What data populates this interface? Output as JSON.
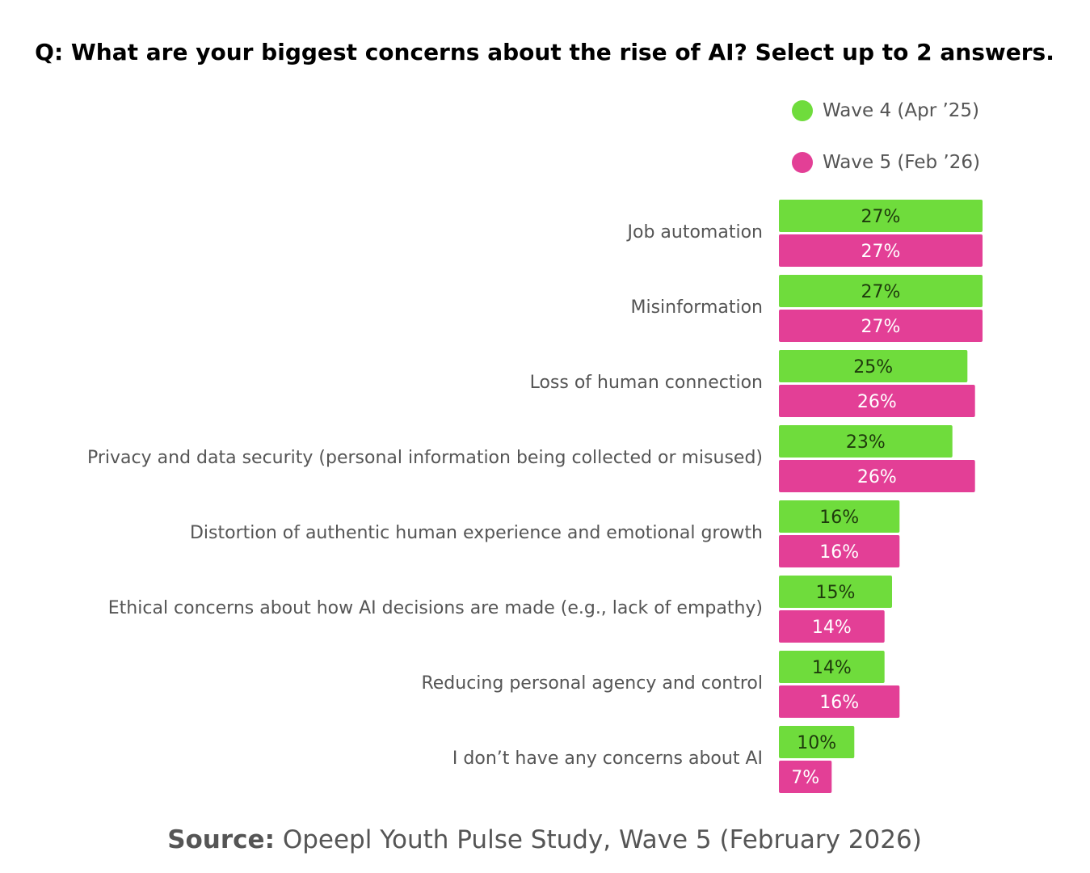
{
  "chart_data": {
    "type": "bar",
    "orientation": "horizontal",
    "title": "Q: What are your biggest concerns about the rise of AI? Select up to 2 answers.",
    "categories": [
      "Job automation",
      "Misinformation",
      "Loss of human connection",
      "Privacy and data security (personal information being collected or misused)",
      "Distortion of authentic human experience and emotional growth",
      "Ethical concerns about how AI decisions are made (e.g., lack of empathy)",
      "Reducing personal agency and control",
      "I don’t have any concerns about AI"
    ],
    "series": [
      {
        "name": "Wave 4 (Apr ’25)",
        "color": "#6fdc3c",
        "label_color": "#1e3a0c",
        "values": [
          27,
          27,
          25,
          23,
          16,
          15,
          14,
          10
        ],
        "labels": [
          "27%",
          "27%",
          "25%",
          "23%",
          "16%",
          "15%",
          "14%",
          "10%"
        ]
      },
      {
        "name": "Wave 5 (Feb ’26)",
        "color": "#e33f96",
        "label_color": "#ffffff",
        "values": [
          27,
          27,
          26,
          26,
          16,
          14,
          16,
          7
        ],
        "labels": [
          "27%",
          "27%",
          "26%",
          "26%",
          "16%",
          "14%",
          "16%",
          "7%"
        ]
      }
    ],
    "xlim": [
      0,
      27
    ],
    "legend_position": "top-right",
    "grid": false,
    "source_label": "Source:",
    "source_text": " Opeepl Youth Pulse Study, Wave 5 (February 2026)"
  }
}
